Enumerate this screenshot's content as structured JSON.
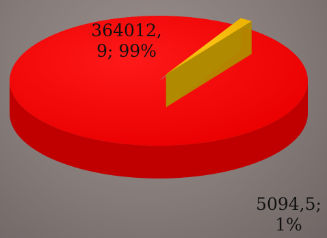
{
  "chart_data": {
    "type": "pie",
    "title": "",
    "slices": [
      {
        "value": 364012.9,
        "percent": 99,
        "color": "#ff0000",
        "side_color": "#c00000",
        "label_line1": "364012,",
        "label_line2": "9; 99%"
      },
      {
        "value": 5094.5,
        "percent": 1,
        "color": "#ffc000",
        "side_color": "#b08a00",
        "label_line1": "5094,5;",
        "label_line2": "1%"
      }
    ],
    "legend": "none",
    "style": "3d"
  }
}
